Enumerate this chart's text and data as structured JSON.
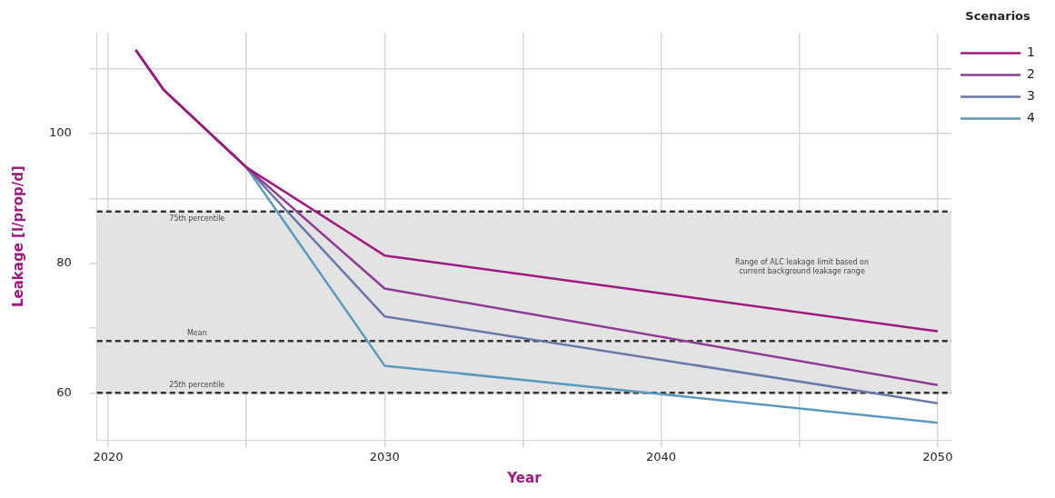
{
  "chart_data": {
    "type": "line",
    "xlabel": "Year",
    "ylabel": "Leakage [l/prop/d]",
    "legend_title": "Scenarios",
    "legend": "top right",
    "grid": true,
    "line_style": "solid",
    "marker": "none",
    "xlim": [
      2019.6,
      2050.5
    ],
    "xticks": [
      2020,
      {
        "value": 2025,
        "label": null
      },
      2030,
      {
        "value": 2035,
        "label": null
      },
      2040,
      {
        "value": 2045,
        "label": null
      },
      2050
    ],
    "ylim": [
      52.7,
      115.6
    ],
    "yticks": [
      60,
      {
        "value": 70,
        "label": null
      },
      80,
      {
        "value": 90,
        "label": null
      },
      100,
      {
        "value": 110,
        "label": null
      }
    ],
    "x": [
      2021,
      2022,
      2025,
      2030,
      2050
    ],
    "series": [
      {
        "name": "1",
        "color": "#a0197e",
        "values": [
          112.9,
          106.8,
          94.8,
          81.2,
          69.5
        ]
      },
      {
        "name": "2",
        "color": "#8e3b96",
        "values": [
          112.9,
          106.8,
          94.8,
          76.1,
          61.2
        ]
      },
      {
        "name": "3",
        "color": "#6a78a8",
        "values": [
          112.9,
          106.8,
          94.8,
          71.8,
          58.4
        ]
      },
      {
        "name": "4",
        "color": "#5a9abf",
        "values": [
          112.9,
          106.8,
          94.8,
          64.2,
          55.4
        ]
      }
    ],
    "bands": [
      {
        "axis": "y",
        "from": 60,
        "to": 88,
        "label": "Range of ALC leakage limit based on current background leakage range",
        "color": "#e3e3e3"
      }
    ],
    "ref_lines": [
      {
        "axis": "y",
        "value": 88,
        "label": "75th percentile",
        "color": "#333333",
        "line_style": "dashed"
      },
      {
        "axis": "y",
        "value": 68,
        "label": "Mean",
        "color": "#333333",
        "line_style": "dashed"
      },
      {
        "axis": "y",
        "value": 60,
        "label": "25th percentile",
        "color": "#333333",
        "line_style": "dashed"
      }
    ]
  }
}
